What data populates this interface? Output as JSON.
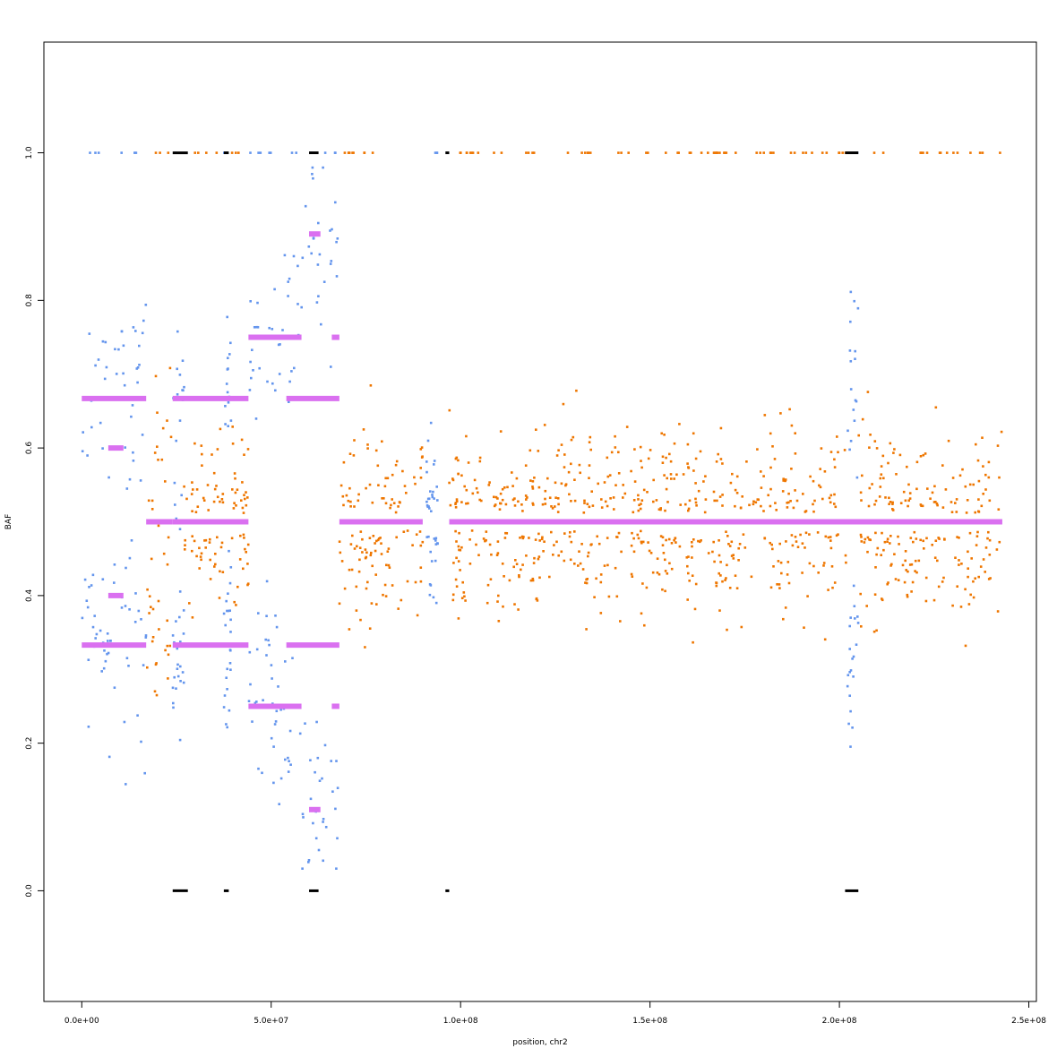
{
  "chart_data": {
    "type": "scatter",
    "title": "",
    "xlabel": "position, chr2",
    "ylabel": "BAF",
    "xlim": [
      -10000000,
      252000000
    ],
    "ylim": [
      -0.15,
      1.15
    ],
    "x_ticks": [
      0,
      50000000,
      100000000,
      150000000,
      200000000,
      250000000
    ],
    "x_tick_labels": [
      "0.0e+00",
      "5.0e+07",
      "1.0e+08",
      "1.5e+08",
      "2.0e+08",
      "2.5e+08"
    ],
    "y_ticks": [
      0.0,
      0.2,
      0.4,
      0.6,
      0.8,
      1.0
    ],
    "y_tick_labels": [
      "0.0",
      "0.2",
      "0.4",
      "0.6",
      "0.8",
      "1.0"
    ],
    "grid": false,
    "legend": "none",
    "colors": {
      "blue": "#6495ED",
      "orange": "#EE7600",
      "segment": "#DA70F0",
      "homozygous": "#000000"
    },
    "series": [
      {
        "color": "blue",
        "segments": [
          {
            "x": [
              0,
              17000000
            ],
            "baf_center": [
              0.33,
              0.67
            ]
          },
          {
            "x": [
              24000000,
              27000000
            ],
            "baf_center": [
              0.33,
              0.67
            ]
          },
          {
            "x": [
              37500000,
              39500000
            ],
            "baf_center": [
              0.33,
              0.67
            ]
          },
          {
            "x": [
              44000000,
              58000000
            ],
            "baf_center": [
              0.25,
              0.75
            ]
          },
          {
            "x": [
              58000000,
              68000000
            ],
            "baf_center": [
              0.11,
              0.89
            ]
          },
          {
            "x": [
              91000000,
              94000000
            ],
            "baf_center": [
              0.5
            ]
          },
          {
            "x": [
              202000000,
              205000000
            ],
            "baf_center": [
              0.33,
              0.67
            ]
          }
        ]
      },
      {
        "color": "orange",
        "segments": [
          {
            "x": [
              17000000,
              24000000
            ],
            "baf_center": [
              0.4,
              0.6
            ]
          },
          {
            "x": [
              27000000,
              37500000
            ],
            "baf_center": [
              0.5
            ]
          },
          {
            "x": [
              39500000,
              44000000
            ],
            "baf_center": [
              0.5
            ]
          },
          {
            "x": [
              68000000,
              90000000
            ],
            "baf_center": [
              0.5
            ]
          },
          {
            "x": [
              97000000,
              202000000
            ],
            "baf_center": [
              0.5
            ]
          },
          {
            "x": [
              205000000,
              243000000
            ],
            "baf_center": [
              0.5
            ]
          }
        ]
      }
    ],
    "segment_lines": [
      {
        "x": [
          0,
          17000000
        ],
        "y": 0.667
      },
      {
        "x": [
          0,
          17000000
        ],
        "y": 0.333
      },
      {
        "x": [
          7000000,
          11000000
        ],
        "y": 0.6
      },
      {
        "x": [
          7000000,
          11000000
        ],
        "y": 0.4
      },
      {
        "x": [
          17000000,
          24000000
        ],
        "y": 0.5
      },
      {
        "x": [
          24000000,
          44000000
        ],
        "y": 0.5
      },
      {
        "x": [
          24000000,
          44000000
        ],
        "y": 0.667
      },
      {
        "x": [
          24000000,
          44000000
        ],
        "y": 0.333
      },
      {
        "x": [
          44000000,
          58000000
        ],
        "y": 0.75
      },
      {
        "x": [
          44000000,
          58000000
        ],
        "y": 0.25
      },
      {
        "x": [
          54000000,
          68000000
        ],
        "y": 0.667
      },
      {
        "x": [
          54000000,
          68000000
        ],
        "y": 0.333
      },
      {
        "x": [
          66000000,
          68000000
        ],
        "y": 0.75
      },
      {
        "x": [
          66000000,
          68000000
        ],
        "y": 0.25
      },
      {
        "x": [
          60000000,
          63000000
        ],
        "y": 0.89
      },
      {
        "x": [
          60000000,
          63000000
        ],
        "y": 0.11
      },
      {
        "x": [
          68000000,
          90000000
        ],
        "y": 0.5
      },
      {
        "x": [
          97000000,
          243000000
        ],
        "y": 0.5
      }
    ],
    "homozygous_runs": [
      {
        "x": [
          24000000,
          28000000
        ]
      },
      {
        "x": [
          37500000,
          38800000
        ]
      },
      {
        "x": [
          60000000,
          62500000
        ]
      },
      {
        "x": [
          96000000,
          97000000
        ]
      },
      {
        "x": [
          201500000,
          205000000
        ]
      }
    ]
  }
}
